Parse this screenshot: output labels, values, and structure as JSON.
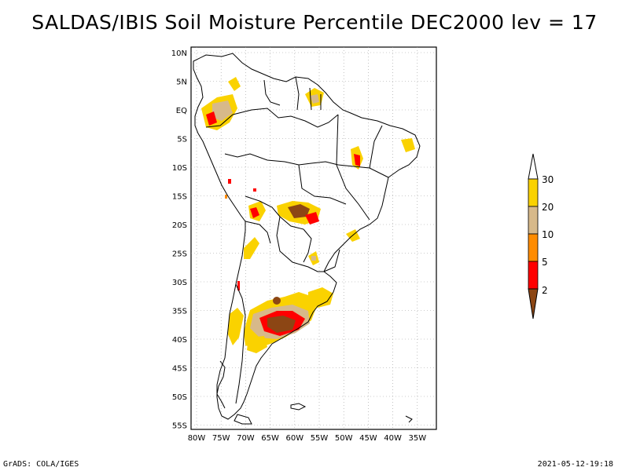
{
  "title": "SALDAS/IBIS Soil Moisture Percentile DEC2000 lev = 17",
  "footer": {
    "left": "GrADS: COLA/IGES",
    "right": "2021-05-12-19:18"
  },
  "axes": {
    "lon_labels": [
      "80W",
      "75W",
      "70W",
      "65W",
      "60W",
      "55W",
      "50W",
      "45W",
      "40W",
      "35W"
    ],
    "lat_labels": [
      "10N",
      "5N",
      "EQ",
      "5S",
      "10S",
      "15S",
      "20S",
      "25S",
      "30S",
      "35S",
      "40S",
      "45S",
      "50S",
      "55S"
    ]
  },
  "legend": {
    "levels": [
      "30",
      "20",
      "10",
      "5",
      "2"
    ],
    "colors": {
      "above_30": "#ffffff",
      "20_30": "#fad200",
      "10_20": "#d7b98a",
      "5_10": "#ff8c00",
      "2_5": "#ff0000",
      "below_2": "#8c4614"
    }
  },
  "colors": {
    "coast": "#000000",
    "grid": "#999999"
  }
}
